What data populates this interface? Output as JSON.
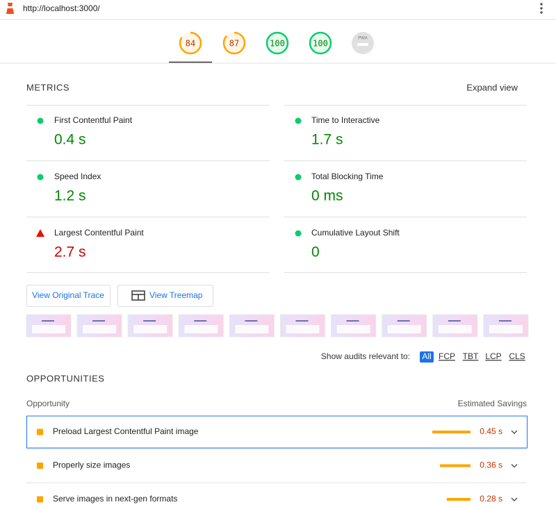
{
  "url": "http://localhost:3000/",
  "gauges": [
    {
      "score": 84,
      "color": "#ffa400",
      "text_color": "#c33300"
    },
    {
      "score": 87,
      "color": "#ffa400",
      "text_color": "#c33300"
    },
    {
      "score": 100,
      "color": "#0cce6b",
      "text_color": "#008800"
    },
    {
      "score": 100,
      "color": "#0cce6b",
      "text_color": "#008800"
    },
    {
      "label": "PWA"
    }
  ],
  "metrics": {
    "title": "METRICS",
    "toggle": "Expand view",
    "items": [
      {
        "label": "First Contentful Paint",
        "value": "0.4 s",
        "icon": "circle",
        "icon_color": "#0cce6b",
        "color": "#008800"
      },
      {
        "label": "Time to Interactive",
        "value": "1.7 s",
        "icon": "circle",
        "icon_color": "#0cce6b",
        "color": "#008800"
      },
      {
        "label": "Speed Index",
        "value": "1.2 s",
        "icon": "circle",
        "icon_color": "#0cce6b",
        "color": "#008800"
      },
      {
        "label": "Total Blocking Time",
        "value": "0 ms",
        "icon": "circle",
        "icon_color": "#0cce6b",
        "color": "#008800"
      },
      {
        "label": "Largest Contentful Paint",
        "value": "2.7 s",
        "icon": "triangle",
        "icon_color": "#eb0f00",
        "color": "#cc0000"
      },
      {
        "label": "Cumulative Layout Shift",
        "value": "0",
        "icon": "circle",
        "icon_color": "#0cce6b",
        "color": "#008800"
      }
    ]
  },
  "buttons": [
    "View Original Trace",
    "View Treemap"
  ],
  "filter": {
    "label": "Show audits relevant to:",
    "options": [
      "All",
      "FCP",
      "TBT",
      "LCP",
      "CLS"
    ]
  },
  "opportunities": {
    "title": "OPPORTUNITIES",
    "column_left": "Opportunity",
    "column_right": "Estimated Savings",
    "rows": [
      {
        "label": "Preload Largest Contentful Paint image",
        "value": 0.45,
        "value_label": "0.45 s"
      },
      {
        "label": "Properly size images",
        "value": 0.36,
        "value_label": "0.36 s"
      },
      {
        "label": "Serve images in next-gen formats",
        "value": 0.28,
        "value_label": "0.28 s"
      }
    ]
  }
}
